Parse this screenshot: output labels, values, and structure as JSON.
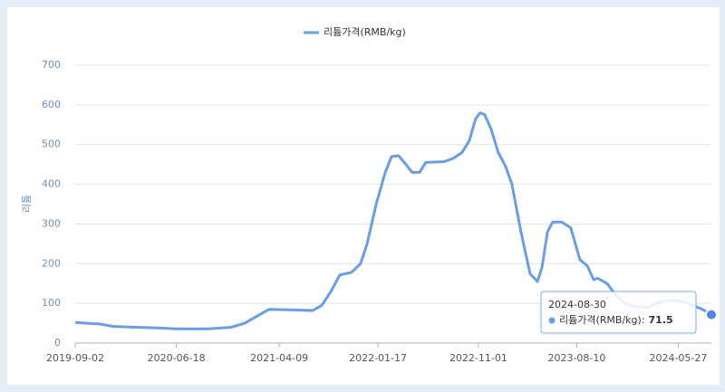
{
  "chart_data": {
    "type": "line",
    "legend_position": "top",
    "ylabel": "리튬",
    "x": [
      "2019-09-02",
      "2019-11-11",
      "2019-12-20",
      "2020-02-23",
      "2020-04-28",
      "2020-06-18",
      "2020-09-18",
      "2020-11-22",
      "2020-12-31",
      "2021-02-08",
      "2021-03-11",
      "2021-05-10",
      "2021-07-14",
      "2021-08-09",
      "2021-09-04",
      "2021-09-30",
      "2021-11-02",
      "2021-11-28",
      "2021-12-17",
      "2022-01-12",
      "2022-02-07",
      "2022-02-25",
      "2022-03-17",
      "2022-04-07",
      "2022-04-25",
      "2022-05-16",
      "2022-06-03",
      "2022-07-25",
      "2022-08-20",
      "2022-09-15",
      "2022-10-06",
      "2022-10-24",
      "2022-11-06",
      "2022-11-19",
      "2022-12-07",
      "2022-12-28",
      "2023-01-18",
      "2023-02-05",
      "2023-03-03",
      "2023-03-29",
      "2023-04-19",
      "2023-05-02",
      "2023-05-18",
      "2023-06-02",
      "2023-06-28",
      "2023-07-24",
      "2023-08-19",
      "2023-09-09",
      "2023-09-27",
      "2023-10-10",
      "2023-11-05",
      "2023-12-01",
      "2023-12-27",
      "2024-01-22",
      "2024-03-01",
      "2024-04-09",
      "2024-05-18",
      "2024-06-26",
      "2024-08-04",
      "2024-08-30"
    ],
    "series": [
      {
        "name": "리튬가격(RMB/kg)",
        "color": "#6b9de0",
        "values": [
          52,
          48,
          42,
          40,
          38,
          36,
          36,
          40,
          50,
          70,
          85,
          84,
          82,
          95,
          130,
          172,
          178,
          200,
          250,
          350,
          430,
          470,
          472,
          450,
          430,
          430,
          455,
          457,
          465,
          480,
          510,
          565,
          580,
          575,
          540,
          480,
          445,
          400,
          280,
          175,
          155,
          190,
          280,
          305,
          305,
          290,
          210,
          195,
          160,
          163,
          150,
          120,
          100,
          92,
          90,
          105,
          108,
          100,
          85,
          71.5
        ]
      }
    ],
    "xlim": [
      "2019-09-02",
      "2024-08-30"
    ],
    "xticks": [
      "2019-09-02",
      "2020-06-18",
      "2021-04-09",
      "2022-01-17",
      "2022-11-01",
      "2023-08-10",
      "2024-05-27"
    ],
    "ylim": [
      0,
      700
    ],
    "yticks": [
      0,
      100,
      200,
      300,
      400,
      500,
      600,
      700
    ],
    "grid": true,
    "tooltip_separator": ":"
  }
}
